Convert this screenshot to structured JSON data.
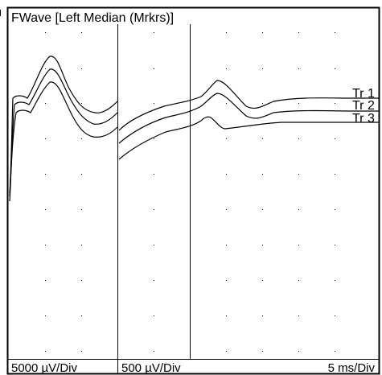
{
  "window": {
    "title": "FWave [Left Median (Mrkrs)]"
  },
  "scales": {
    "left_sensitivity": "5000 µV/Div",
    "right_sensitivity": "500 µV/Div",
    "timebase": "5 ms/Div"
  },
  "traces": [
    {
      "label": "Tr 1"
    },
    {
      "label": "Tr 2"
    },
    {
      "label": "Tr 3"
    }
  ],
  "colors": {
    "background": "#ffffff",
    "trace": "#000000",
    "grid_dot": "#000000"
  }
}
